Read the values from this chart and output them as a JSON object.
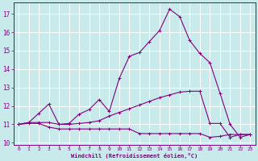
{
  "background_color": "#c8eaea",
  "grid_color": "#ffffff",
  "line_color": "#800080",
  "xlabel": "Windchill (Refroidissement éolien,°C)",
  "xlim": [
    -0.5,
    23.5
  ],
  "ylim": [
    9.9,
    17.6
  ],
  "yticks": [
    10,
    11,
    12,
    13,
    14,
    15,
    16,
    17
  ],
  "xticks": [
    0,
    1,
    2,
    3,
    4,
    5,
    6,
    7,
    8,
    9,
    10,
    11,
    12,
    13,
    14,
    15,
    16,
    17,
    18,
    19,
    20,
    21,
    22,
    23
  ],
  "line1_x": [
    0,
    1,
    2,
    3,
    4,
    5,
    6,
    7,
    8,
    9,
    10,
    11,
    12,
    13,
    14,
    15,
    16,
    17,
    18,
    19,
    20,
    21,
    22,
    23
  ],
  "line1_y": [
    11.0,
    11.05,
    11.05,
    10.85,
    10.75,
    10.75,
    10.75,
    10.75,
    10.75,
    10.75,
    10.75,
    10.75,
    10.5,
    10.5,
    10.5,
    10.5,
    10.5,
    10.5,
    10.5,
    10.3,
    10.35,
    10.45,
    10.45,
    10.45
  ],
  "line2_x": [
    0,
    1,
    2,
    3,
    4,
    5,
    6,
    7,
    8,
    9,
    10,
    11,
    12,
    13,
    14,
    15,
    16,
    17,
    18,
    19,
    20,
    21,
    22,
    23
  ],
  "line2_y": [
    11.0,
    11.1,
    11.1,
    11.1,
    11.0,
    11.0,
    11.05,
    11.1,
    11.2,
    11.45,
    11.65,
    11.85,
    12.05,
    12.25,
    12.45,
    12.6,
    12.75,
    12.8,
    12.8,
    11.05,
    11.05,
    10.3,
    10.45,
    10.45
  ],
  "line3_x": [
    0,
    1,
    2,
    3,
    4,
    5,
    6,
    7,
    8,
    9,
    10,
    11,
    12,
    13,
    14,
    15,
    16,
    17,
    18,
    19,
    20,
    21,
    22,
    23
  ],
  "line3_y": [
    11.0,
    11.1,
    11.6,
    12.1,
    11.0,
    11.05,
    11.55,
    11.8,
    12.35,
    11.7,
    13.5,
    14.7,
    14.9,
    15.5,
    16.1,
    17.25,
    16.85,
    15.55,
    14.85,
    14.35,
    12.7,
    11.0,
    10.3,
    10.45
  ]
}
